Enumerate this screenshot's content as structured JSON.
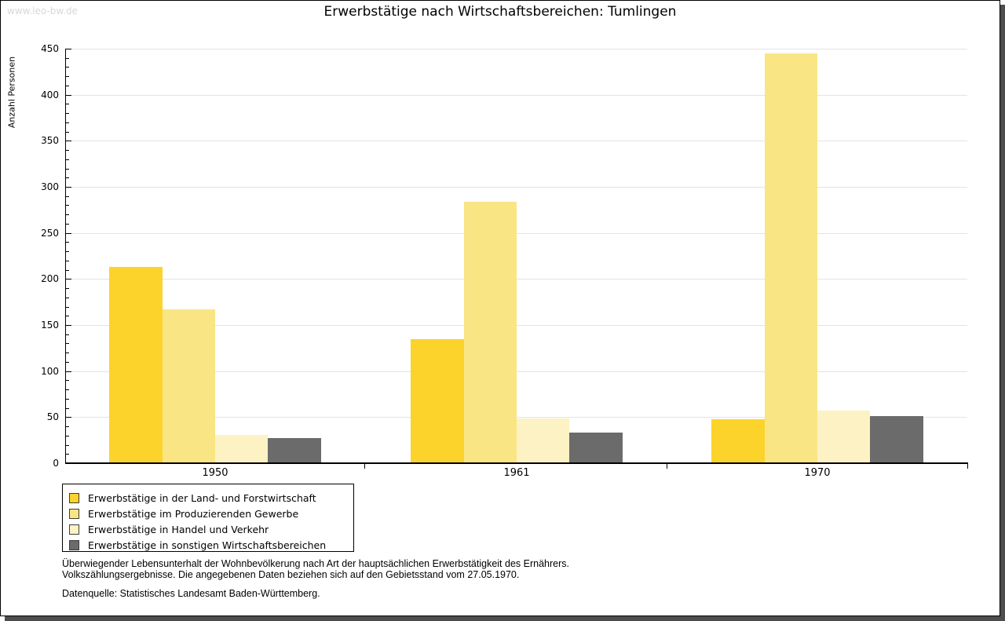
{
  "watermark": "www.leo-bw.de",
  "chart_data": {
    "type": "bar",
    "title": "Erwerbstätige nach Wirtschaftsbereichen: Tumlingen",
    "xlabel": "",
    "ylabel": "Anzahl Personen",
    "ylim": [
      0,
      450
    ],
    "ytick_step": 50,
    "y_minor_tick_step": 10,
    "grid": true,
    "legend_position": "bottom-left",
    "categories": [
      "1950",
      "1961",
      "1970"
    ],
    "series": [
      {
        "name": "Erwerbstätige in der Land- und Forstwirtschaft",
        "color": "#fcd32b",
        "values": [
          213,
          135,
          48
        ]
      },
      {
        "name": "Erwerbstätige im Produzierenden Gewerbe",
        "color": "#fae584",
        "values": [
          167,
          284,
          445
        ]
      },
      {
        "name": "Erwerbstätige in Handel und Verkehr",
        "color": "#fcf2c3",
        "values": [
          31,
          49,
          57
        ]
      },
      {
        "name": "Erwerbstätige in sonstigen Wirtschaftsbereichen",
        "color": "#6b6b6b",
        "values": [
          27,
          33,
          51
        ]
      }
    ]
  },
  "footnotes": {
    "line1": "Überwiegender Lebensunterhalt der Wohnbevölkerung nach Art der hauptsächlichen Erwerbstätigkeit des Ernährers.",
    "line2": "Volkszählungsergebnisse. Die angegebenen Daten beziehen sich auf den Gebietsstand vom 27.05.1970.",
    "source": "Datenquelle: Statistisches Landesamt Baden-Württemberg."
  }
}
